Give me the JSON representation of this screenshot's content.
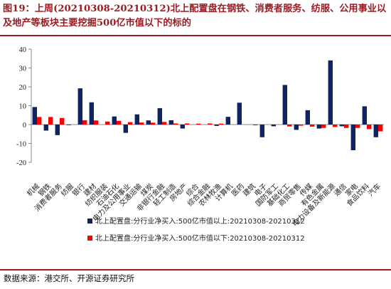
{
  "header": {
    "title": "图19：上周(20210308-20210312)北上配置盘在钢铁、消费者服务、纺服、公用事业以及地产等板块主要挖掘500亿市值以下的标的"
  },
  "footer": {
    "source": "数据来源：港交所、开源证券研究所"
  },
  "colors": {
    "series1": "#0f2360",
    "series2": "#ff0000",
    "axis": "#888888",
    "title": "#9c1c23"
  },
  "chart_data": {
    "type": "bar",
    "categories": [
      "机械",
      "钢铁",
      "消费者服务",
      "纺服",
      "银行",
      "建材",
      "纺织服装",
      "石油石化",
      "电力及公用事业",
      "交通运输",
      "煤炭",
      "非银行金融",
      "轻工制造",
      "房地产",
      "综合",
      "综合金融",
      "农林牧渔",
      "计算机",
      "医药",
      "建筑",
      "电子",
      "国防军工",
      "基础化工",
      "商贸零售",
      "传媒",
      "有色金属",
      "电力设备及新能源",
      "通信",
      "家电",
      "食品饮料",
      "汽车"
    ],
    "series": [
      {
        "name": "北上配置盘:分行业净买入:500亿市值以上:20210308-20210312",
        "values": [
          9.3,
          -3.2,
          -5.6,
          -0.2,
          19.2,
          11.8,
          0,
          4.3,
          -4.4,
          5.4,
          2.2,
          8.7,
          2.3,
          -2.1,
          0,
          0,
          -0.7,
          4.1,
          11.6,
          0,
          -6.7,
          -0.9,
          21.0,
          -2.8,
          7.6,
          -2.1,
          34.0,
          -0.9,
          -13.6,
          9.7,
          -6.7
        ]
      },
      {
        "name": "北上配置盘:分行业净买入:500亿市值以下:20210308-20210312",
        "values": [
          4.0,
          4.0,
          3.5,
          0,
          2.3,
          2.2,
          1.6,
          2.0,
          1.3,
          1.1,
          1.0,
          1.4,
          0.6,
          0.6,
          0.5,
          0.6,
          0.5,
          0,
          0,
          -0.4,
          0,
          0,
          -1.0,
          -0.6,
          -1.1,
          -1.8,
          -1.3,
          -1.8,
          -1.8,
          -2.4,
          -3.6
        ]
      }
    ],
    "ylim": [
      -20,
      40
    ],
    "yticks": [
      -20,
      -10,
      0,
      10,
      20,
      30,
      40
    ],
    "legend_position": "bottom-left",
    "grid": false
  }
}
